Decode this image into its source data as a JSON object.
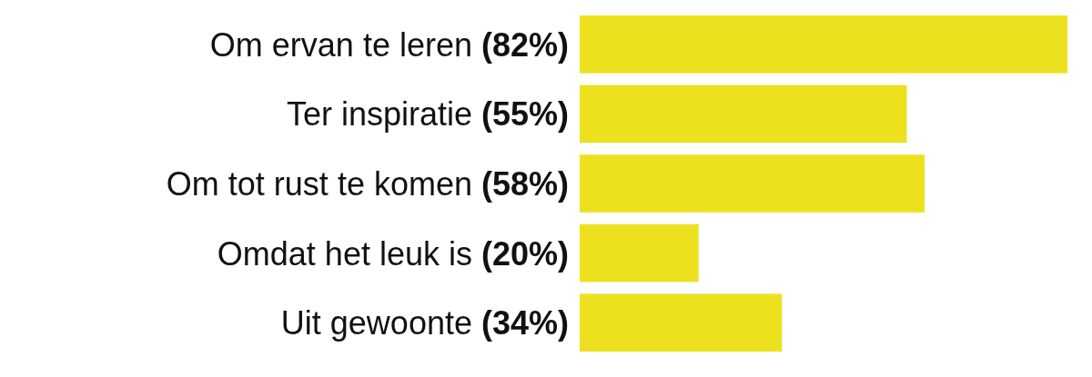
{
  "chart_data": {
    "type": "bar",
    "orientation": "horizontal",
    "categories": [
      "Om ervan te leren",
      "Ter inspiratie",
      "Om tot rust te komen",
      "Omdat het leuk is",
      "Uit gewoonte"
    ],
    "values": [
      82,
      55,
      58,
      20,
      34
    ],
    "value_labels": [
      "(82%)",
      "(55%)",
      "(58%)",
      "(20%)",
      "(34%)"
    ],
    "color": "#ede11f"
  }
}
